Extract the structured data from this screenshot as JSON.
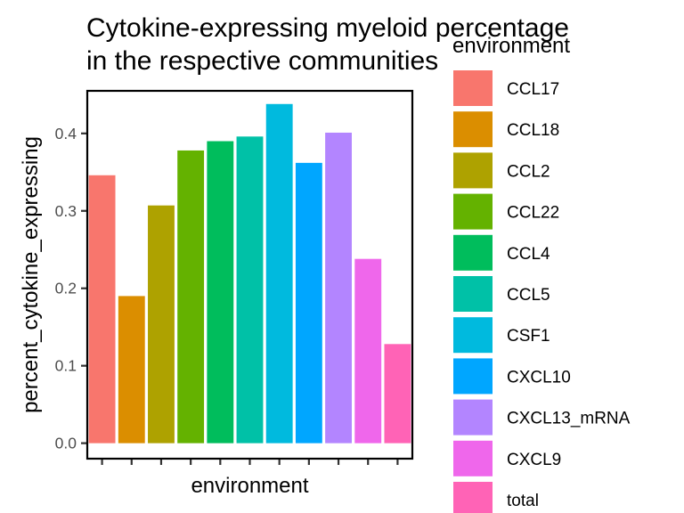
{
  "chart_data": {
    "type": "bar",
    "title": "Cytokine-expressing myeloid percentage\nin the respective communities",
    "xlabel": "environment",
    "ylabel": "percent_cytokine_expressing",
    "categories": [
      "CCL17",
      "CCL18",
      "CCL2",
      "CCL22",
      "CCL4",
      "CCL5",
      "CSF1",
      "CXCL10",
      "CXCL13_mRNA",
      "CXCL9",
      "total"
    ],
    "values": [
      0.346,
      0.19,
      0.307,
      0.378,
      0.39,
      0.396,
      0.438,
      0.362,
      0.401,
      0.238,
      0.128
    ],
    "colors": [
      "#F8766D",
      "#DB8E00",
      "#AEA200",
      "#64B200",
      "#00BD5C",
      "#00C1A7",
      "#00BADE",
      "#00A6FF",
      "#B385FF",
      "#EF67EB",
      "#FF63B6"
    ],
    "ylim": [
      -0.02,
      0.455
    ],
    "yticks": [
      0.0,
      0.1,
      0.2,
      0.3,
      0.4
    ],
    "ytick_labels": [
      "0.0",
      "0.1",
      "0.2",
      "0.3",
      "0.4"
    ],
    "grid": false,
    "legend": {
      "title": "environment",
      "position": "right",
      "entries": [
        "CCL17",
        "CCL18",
        "CCL2",
        "CCL22",
        "CCL4",
        "CCL5",
        "CSF1",
        "CXCL10",
        "CXCL13_mRNA",
        "CXCL9",
        "total"
      ]
    }
  }
}
